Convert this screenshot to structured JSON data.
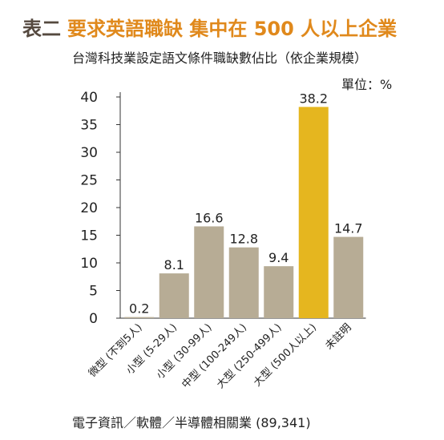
{
  "header": {
    "prefix": "表二",
    "title": "要求英語職缺 集中在 500 人以上企業",
    "subtitle": "台灣科技業設定語文條件職缺數佔比（依企業規模）",
    "unit": "單位：%"
  },
  "footer": {
    "text": "電子資訊／軟體／半導體相關業 (89,341)"
  },
  "colors": {
    "bar": "#b7ac95",
    "highlight": "#e5b61f",
    "title_accent": "#e0891c",
    "title_prefix": "#55493f"
  },
  "chart_data": {
    "type": "bar",
    "title": "要求英語職缺 集中在 500 人以上企業",
    "subtitle": "台灣科技業設定語文條件職缺數佔比（依企業規模）",
    "unit": "單位：%",
    "categories": [
      "微型 (不到5人)",
      "小型 (5-29人)",
      "小型 (30-99人)",
      "中型 (100-249人)",
      "大型 (250-499人)",
      "大型 (500人以上)",
      "未註明"
    ],
    "values": [
      0.2,
      8.1,
      16.6,
      12.8,
      9.4,
      38.2,
      14.7
    ],
    "value_labels": [
      "0.2",
      "8.1",
      "16.6",
      "12.8",
      "9.4",
      "38.2",
      "14.7"
    ],
    "highlight_index": 5,
    "ylim": [
      0,
      40
    ],
    "yticks": [
      0,
      5,
      10,
      15,
      20,
      25,
      30,
      35,
      40
    ],
    "grid": false,
    "legend": "none"
  }
}
